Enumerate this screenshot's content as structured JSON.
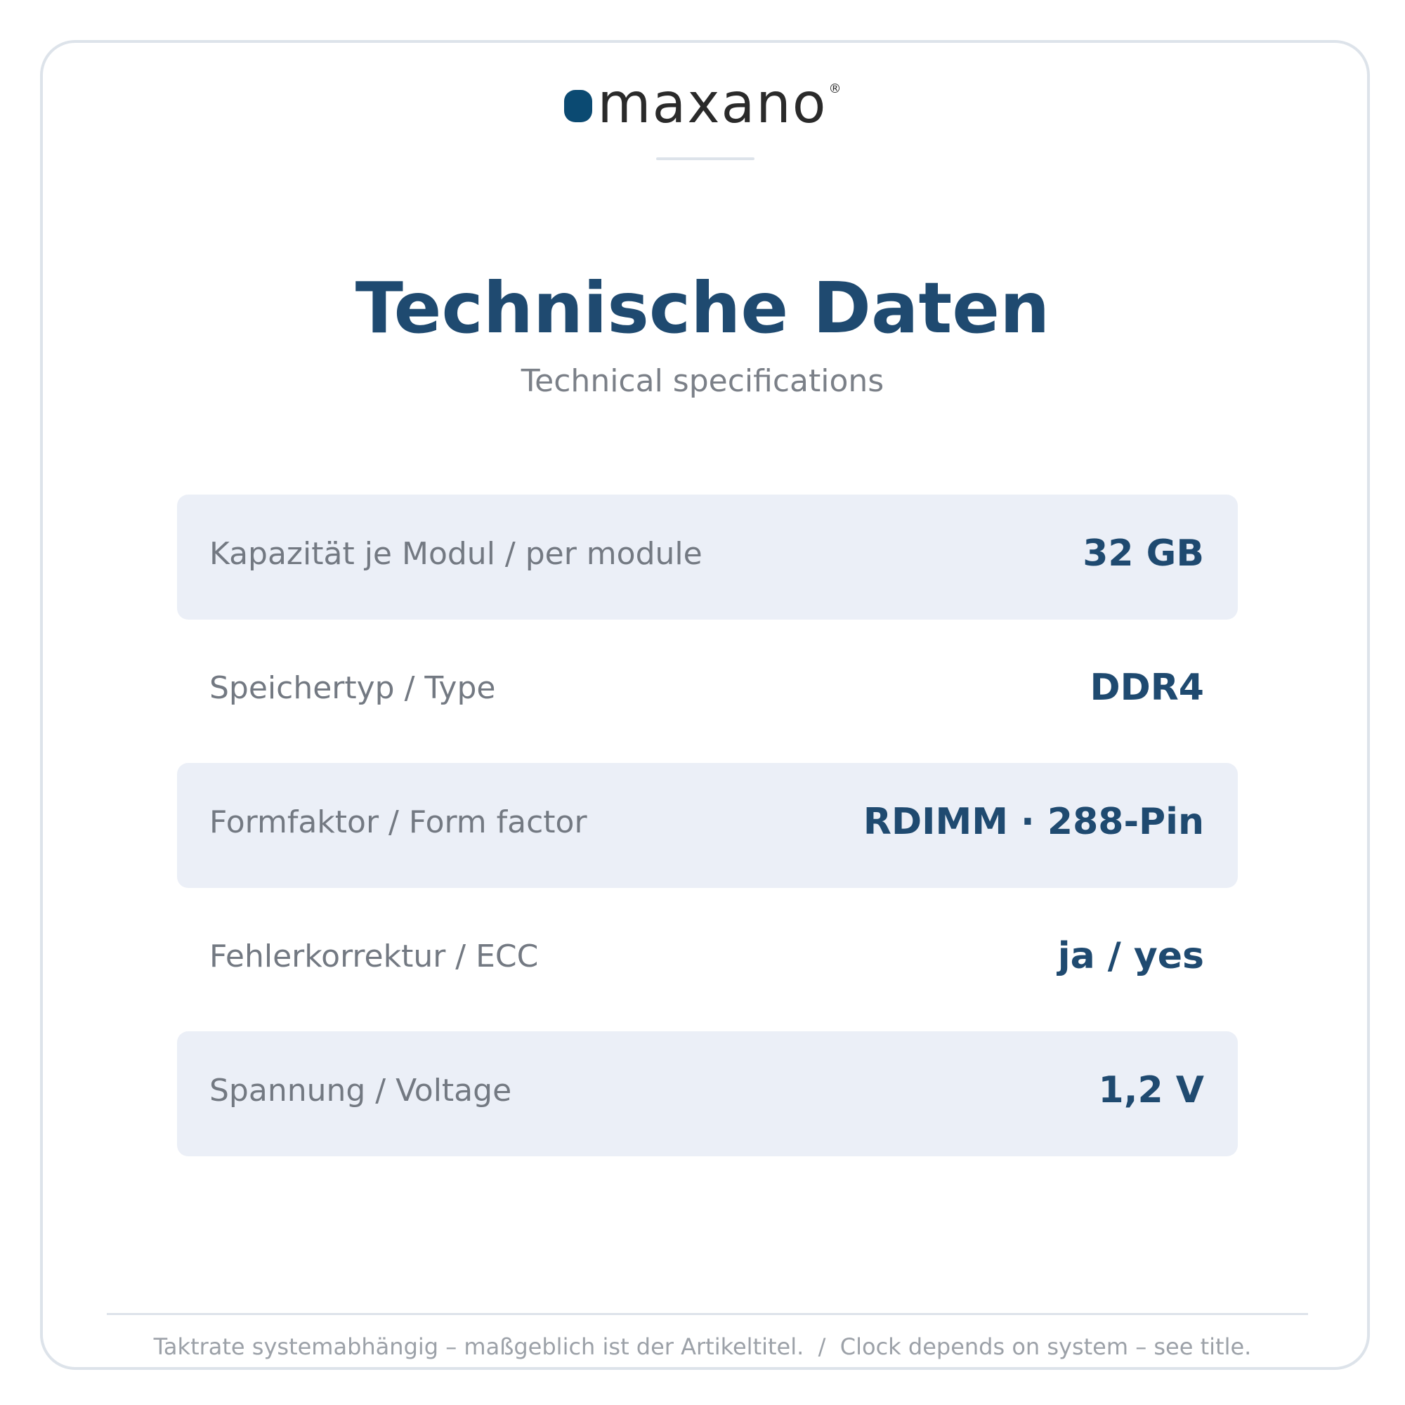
{
  "brand": {
    "name": "maxano",
    "registered_mark": "®",
    "accent_color": "#0b4a72"
  },
  "header": {
    "title": "Technische Daten",
    "subtitle": "Technical specifications"
  },
  "specs": [
    {
      "label": "Kapazität je Modul / per module",
      "value": "32 GB"
    },
    {
      "label": "Speichertyp / Type",
      "value": "DDR4"
    },
    {
      "label": "Formfaktor / Form factor",
      "value": "RDIMM · 288-Pin"
    },
    {
      "label": "Fehlerkorrektur / ECC",
      "value": "ja / yes"
    },
    {
      "label": "Spannung / Voltage",
      "value": "1,2 V"
    }
  ],
  "footer": {
    "note": "Taktrate systemabhängig – maßgeblich ist der Artikeltitel.  /  Clock depends on system – see title."
  },
  "colors": {
    "title": "#1f4a70",
    "row_shade": "#ebeff7",
    "border": "#dde3ea"
  }
}
